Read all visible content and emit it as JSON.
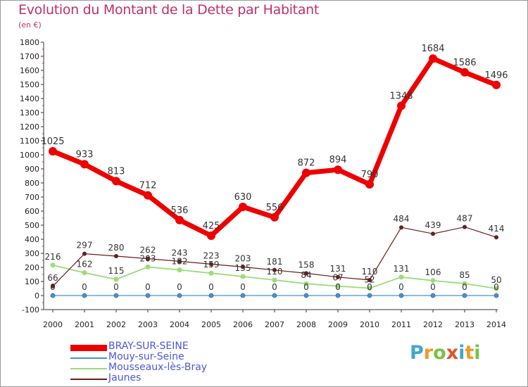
{
  "title": "Evolution du Montant de la Dette par Habitant",
  "subtitle": "(en €)",
  "logo": {
    "chars": [
      "P",
      "r",
      "o",
      "x",
      "i",
      "t",
      "i"
    ],
    "colors": [
      "#3fa6d6",
      "#f29a1f",
      "#7ac143",
      "#e2542a",
      "#3fa6d6",
      "#f29a1f",
      "#7ac143"
    ]
  },
  "chart_data": {
    "type": "line",
    "title": "Evolution du Montant de la Dette par Habitant",
    "ylabel": "(en €)",
    "xlabel": "",
    "x": [
      "2000",
      "2001",
      "2002",
      "2003",
      "2004",
      "2005",
      "2006",
      "2007",
      "2008",
      "2009",
      "2010",
      "2011",
      "2012",
      "2013",
      "2014"
    ],
    "ylim": [
      -100,
      1800
    ],
    "yticks": [
      -100,
      0,
      100,
      200,
      300,
      400,
      500,
      600,
      700,
      800,
      900,
      1000,
      1100,
      1200,
      1300,
      1400,
      1500,
      1600,
      1700,
      1800
    ],
    "grid": false,
    "legend": "bottom-left",
    "series": [
      {
        "name": "BRAY-SUR-SEINE",
        "color": "#ee0000",
        "values": [
          1025,
          933,
          813,
          712,
          536,
          425,
          630,
          556,
          872,
          894,
          790,
          1348,
          1684,
          1586,
          1496
        ]
      },
      {
        "name": "Mouy-sur-Seine",
        "color": "#4a90d0",
        "values": [
          0,
          0,
          0,
          0,
          0,
          0,
          0,
          0,
          0,
          0,
          0,
          0,
          0,
          0,
          0
        ]
      },
      {
        "name": "Mousseaux-lès-Bray",
        "color": "#99dd77",
        "values": [
          216,
          162,
          115,
          203,
          182,
          159,
          135,
          110,
          84,
          67,
          52,
          131,
          106,
          85,
          50
        ]
      },
      {
        "name": "Jaunes",
        "color": "#6b1d1d",
        "values": [
          66,
          297,
          280,
          262,
          243,
          223,
          203,
          181,
          158,
          131,
          110,
          484,
          439,
          487,
          414
        ]
      }
    ]
  }
}
